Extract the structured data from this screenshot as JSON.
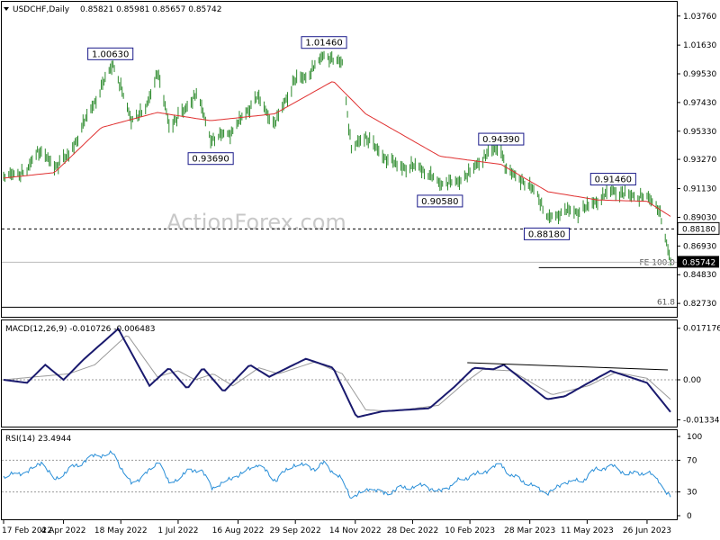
{
  "chart_data": [
    {
      "type": "candlestick",
      "symbol": "USDCHF,Daily",
      "ohlc_header": "0.85821 0.85981 0.85657 0.85742",
      "watermark": "ActionForex.com",
      "ylim": [
        0.8175,
        1.048
      ],
      "yticks": [
        "1.03760",
        "1.01630",
        "0.99530",
        "0.97430",
        "0.95330",
        "0.93270",
        "0.91130",
        "0.89030",
        "0.86930",
        "0.84830",
        "0.82730"
      ],
      "horizontal_line": {
        "value": 0.8818,
        "label": "0.88180",
        "style": "dashed"
      },
      "current_price": {
        "value": 0.85742,
        "label": "0.85742"
      },
      "fibo_lines": [
        {
          "label": "FE 100.0",
          "value": 0.8535
        },
        {
          "label": "61.8",
          "value": 0.8245
        }
      ],
      "annotations": [
        {
          "label": "1.00630",
          "value": 1.0063,
          "date": "2022-05-10"
        },
        {
          "label": "0.93690",
          "value": 0.9369,
          "date": "2022-07-26"
        },
        {
          "label": "1.01460",
          "value": 1.0146,
          "date": "2022-10-21"
        },
        {
          "label": "0.90580",
          "value": 0.9058,
          "date": "2023-01-18"
        },
        {
          "label": "0.94390",
          "value": 0.9439,
          "date": "2023-03-06"
        },
        {
          "label": "0.88180",
          "value": 0.8818,
          "date": "2023-04-10"
        },
        {
          "label": "0.91460",
          "value": 0.9146,
          "date": "2023-05-31"
        }
      ],
      "series": [
        {
          "type": "ohlc",
          "waypoints": [
            [
              "2022-02-17",
              0.92
            ],
            [
              "2022-03-07",
              0.924
            ],
            [
              "2022-03-15",
              0.94
            ],
            [
              "2022-03-28",
              0.928
            ],
            [
              "2022-04-08",
              0.935
            ],
            [
              "2022-04-20",
              0.96
            ],
            [
              "2022-05-03",
              0.985
            ],
            [
              "2022-05-12",
              1.003
            ],
            [
              "2022-05-26",
              0.961
            ],
            [
              "2022-06-06",
              0.969
            ],
            [
              "2022-06-15",
              0.997
            ],
            [
              "2022-06-24",
              0.958
            ],
            [
              "2022-07-06",
              0.968
            ],
            [
              "2022-07-15",
              0.982
            ],
            [
              "2022-07-26",
              0.948
            ],
            [
              "2022-08-10",
              0.952
            ],
            [
              "2022-08-31",
              0.978
            ],
            [
              "2022-09-13",
              0.958
            ],
            [
              "2022-09-28",
              0.99
            ],
            [
              "2022-10-07",
              0.993
            ],
            [
              "2022-10-21",
              1.009
            ],
            [
              "2022-11-04",
              1.003
            ],
            [
              "2022-11-11",
              0.94
            ],
            [
              "2022-11-22",
              0.95
            ],
            [
              "2022-12-02",
              0.938
            ],
            [
              "2022-12-16",
              0.928
            ],
            [
              "2023-01-02",
              0.927
            ],
            [
              "2023-01-18",
              0.915
            ],
            [
              "2023-02-01",
              0.916
            ],
            [
              "2023-02-10",
              0.923
            ],
            [
              "2023-02-23",
              0.937
            ],
            [
              "2023-03-06",
              0.941
            ],
            [
              "2023-03-10",
              0.924
            ],
            [
              "2023-03-22",
              0.918
            ],
            [
              "2023-04-03",
              0.907
            ],
            [
              "2023-04-11",
              0.889
            ],
            [
              "2023-04-24",
              0.895
            ],
            [
              "2023-05-05",
              0.894
            ],
            [
              "2023-05-19",
              0.903
            ],
            [
              "2023-05-31",
              0.91
            ],
            [
              "2023-06-12",
              0.906
            ],
            [
              "2023-06-26",
              0.905
            ],
            [
              "2023-07-05",
              0.897
            ],
            [
              "2023-07-10",
              0.875
            ],
            [
              "2023-07-14",
              0.8574
            ]
          ]
        },
        {
          "name": "",
          "type": "line",
          "color": "#e03030",
          "waypoints": [
            [
              "2022-02-17",
              0.919
            ],
            [
              "2022-03-28",
              0.923
            ],
            [
              "2022-05-03",
              0.956
            ],
            [
              "2022-06-15",
              0.967
            ],
            [
              "2022-07-26",
              0.961
            ],
            [
              "2022-09-13",
              0.966
            ],
            [
              "2022-10-28",
              0.99
            ],
            [
              "2022-11-22",
              0.966
            ],
            [
              "2023-01-18",
              0.935
            ],
            [
              "2023-03-06",
              0.929
            ],
            [
              "2023-04-11",
              0.909
            ],
            [
              "2023-05-19",
              0.903
            ],
            [
              "2023-06-26",
              0.902
            ],
            [
              "2023-07-14",
              0.891
            ]
          ]
        }
      ]
    },
    {
      "type": "line",
      "title": "MACD(12,26,9) -0.010726 -0.006483",
      "ylim": [
        -0.0156,
        0.0198
      ],
      "yticks": [
        "0.017176",
        "0.00",
        "-0.01334"
      ],
      "zero_line": {
        "value": 0.0,
        "style": "dotted"
      },
      "trendline": {
        "x": [
          "2023-02-08",
          "2023-07-12"
        ],
        "y": [
          0.0057,
          0.0033
        ]
      },
      "series": [
        {
          "name": "MACD",
          "color": "#1a1a6e",
          "values_at": [
            [
              "2022-02-17",
              0.0
            ],
            [
              "2022-03-07",
              -0.001
            ],
            [
              "2022-03-21",
              0.005
            ],
            [
              "2022-04-04",
              0.0
            ],
            [
              "2022-04-20",
              0.007
            ],
            [
              "2022-05-16",
              0.017
            ],
            [
              "2022-06-09",
              -0.002
            ],
            [
              "2022-06-24",
              0.004
            ],
            [
              "2022-07-08",
              -0.003
            ],
            [
              "2022-07-20",
              0.004
            ],
            [
              "2022-08-05",
              -0.004
            ],
            [
              "2022-08-25",
              0.005
            ],
            [
              "2022-09-09",
              0.001
            ],
            [
              "2022-10-07",
              0.007
            ],
            [
              "2022-10-28",
              0.004
            ],
            [
              "2022-11-15",
              -0.0125
            ],
            [
              "2022-12-05",
              -0.0105
            ],
            [
              "2023-01-10",
              -0.0095
            ],
            [
              "2023-01-30",
              -0.002
            ],
            [
              "2023-02-13",
              0.004
            ],
            [
              "2023-02-28",
              0.0035
            ],
            [
              "2023-03-08",
              0.005
            ],
            [
              "2023-04-10",
              -0.0065
            ],
            [
              "2023-04-24",
              -0.0055
            ],
            [
              "2023-05-08",
              -0.002
            ],
            [
              "2023-05-29",
              0.003
            ],
            [
              "2023-06-12",
              0.001
            ],
            [
              "2023-06-26",
              -0.001
            ],
            [
              "2023-07-14",
              -0.0107
            ]
          ]
        },
        {
          "name": "Signal",
          "color": "#9a9a9a",
          "values_at": [
            [
              "2022-02-17",
              0.0
            ],
            [
              "2022-03-14",
              0.001
            ],
            [
              "2022-04-08",
              0.002
            ],
            [
              "2022-04-28",
              0.005
            ],
            [
              "2022-05-23",
              0.015
            ],
            [
              "2022-06-15",
              0.001
            ],
            [
              "2022-07-01",
              0.003
            ],
            [
              "2022-07-14",
              0.0
            ],
            [
              "2022-07-28",
              0.002
            ],
            [
              "2022-08-12",
              -0.002
            ],
            [
              "2022-09-01",
              0.004
            ],
            [
              "2022-09-16",
              0.002
            ],
            [
              "2022-10-14",
              0.006
            ],
            [
              "2022-11-04",
              0.002
            ],
            [
              "2022-11-22",
              -0.01
            ],
            [
              "2022-12-12",
              -0.0105
            ],
            [
              "2023-01-17",
              -0.0085
            ],
            [
              "2023-02-06",
              -0.001
            ],
            [
              "2023-02-20",
              0.0035
            ],
            [
              "2023-03-14",
              0.003
            ],
            [
              "2023-04-14",
              -0.005
            ],
            [
              "2023-05-12",
              -0.002
            ],
            [
              "2023-06-02",
              0.0025
            ],
            [
              "2023-06-26",
              0.0005
            ],
            [
              "2023-07-14",
              -0.0065
            ]
          ]
        }
      ]
    },
    {
      "type": "line",
      "title": "RSI(14) 23.4944",
      "ylim": [
        0,
        100
      ],
      "yticks": [
        "100",
        "70",
        "30",
        "0"
      ],
      "levels": [
        70,
        30
      ],
      "series": [
        {
          "name": "",
          "color": "#2a8fd8",
          "values_at": [
            [
              "2022-02-17",
              50
            ],
            [
              "2022-03-07",
              55
            ],
            [
              "2022-03-18",
              68
            ],
            [
              "2022-03-28",
              45
            ],
            [
              "2022-04-12",
              62
            ],
            [
              "2022-04-28",
              76
            ],
            [
              "2022-05-12",
              78
            ],
            [
              "2022-05-26",
              40
            ],
            [
              "2022-06-08",
              55
            ],
            [
              "2022-06-16",
              70
            ],
            [
              "2022-06-24",
              40
            ],
            [
              "2022-07-08",
              55
            ],
            [
              "2022-07-18",
              60
            ],
            [
              "2022-07-27",
              35
            ],
            [
              "2022-08-15",
              50
            ],
            [
              "2022-08-31",
              65
            ],
            [
              "2022-09-14",
              45
            ],
            [
              "2022-09-28",
              65
            ],
            [
              "2022-10-14",
              60
            ],
            [
              "2022-10-21",
              66
            ],
            [
              "2022-11-04",
              45
            ],
            [
              "2022-11-11",
              22
            ],
            [
              "2022-11-25",
              35
            ],
            [
              "2022-12-06",
              28
            ],
            [
              "2022-12-20",
              35
            ],
            [
              "2023-01-06",
              38
            ],
            [
              "2023-01-18",
              30
            ],
            [
              "2023-02-02",
              45
            ],
            [
              "2023-02-15",
              52
            ],
            [
              "2023-03-06",
              65
            ],
            [
              "2023-03-14",
              50
            ],
            [
              "2023-03-28",
              40
            ],
            [
              "2023-04-10",
              28
            ],
            [
              "2023-04-24",
              42
            ],
            [
              "2023-05-08",
              45
            ],
            [
              "2023-05-19",
              60
            ],
            [
              "2023-05-31",
              62
            ],
            [
              "2023-06-12",
              52
            ],
            [
              "2023-06-26",
              55
            ],
            [
              "2023-07-05",
              45
            ],
            [
              "2023-07-10",
              30
            ],
            [
              "2023-07-14",
              23.5
            ]
          ]
        }
      ]
    }
  ],
  "x_axis": {
    "start_date": "2022-02-17",
    "end_date": "2023-07-14",
    "tick_labels": [
      {
        "date": "2022-02-17",
        "label": "17 Feb 2022"
      },
      {
        "date": "2022-04-04",
        "label": "4 Apr 2022"
      },
      {
        "date": "2022-05-18",
        "label": "18 May 2022"
      },
      {
        "date": "2022-07-01",
        "label": "1 Jul 2022"
      },
      {
        "date": "2022-08-16",
        "label": "16 Aug 2022"
      },
      {
        "date": "2022-09-29",
        "label": "29 Sep 2022"
      },
      {
        "date": "2022-11-14",
        "label": "14 Nov 2022"
      },
      {
        "date": "2022-12-28",
        "label": "28 Dec 2022"
      },
      {
        "date": "2023-02-10",
        "label": "10 Feb 2023"
      },
      {
        "date": "2023-03-28",
        "label": "28 Mar 2023"
      },
      {
        "date": "2023-05-11",
        "label": "11 May 2023"
      },
      {
        "date": "2023-06-26",
        "label": "26 Jun 2023"
      }
    ]
  }
}
